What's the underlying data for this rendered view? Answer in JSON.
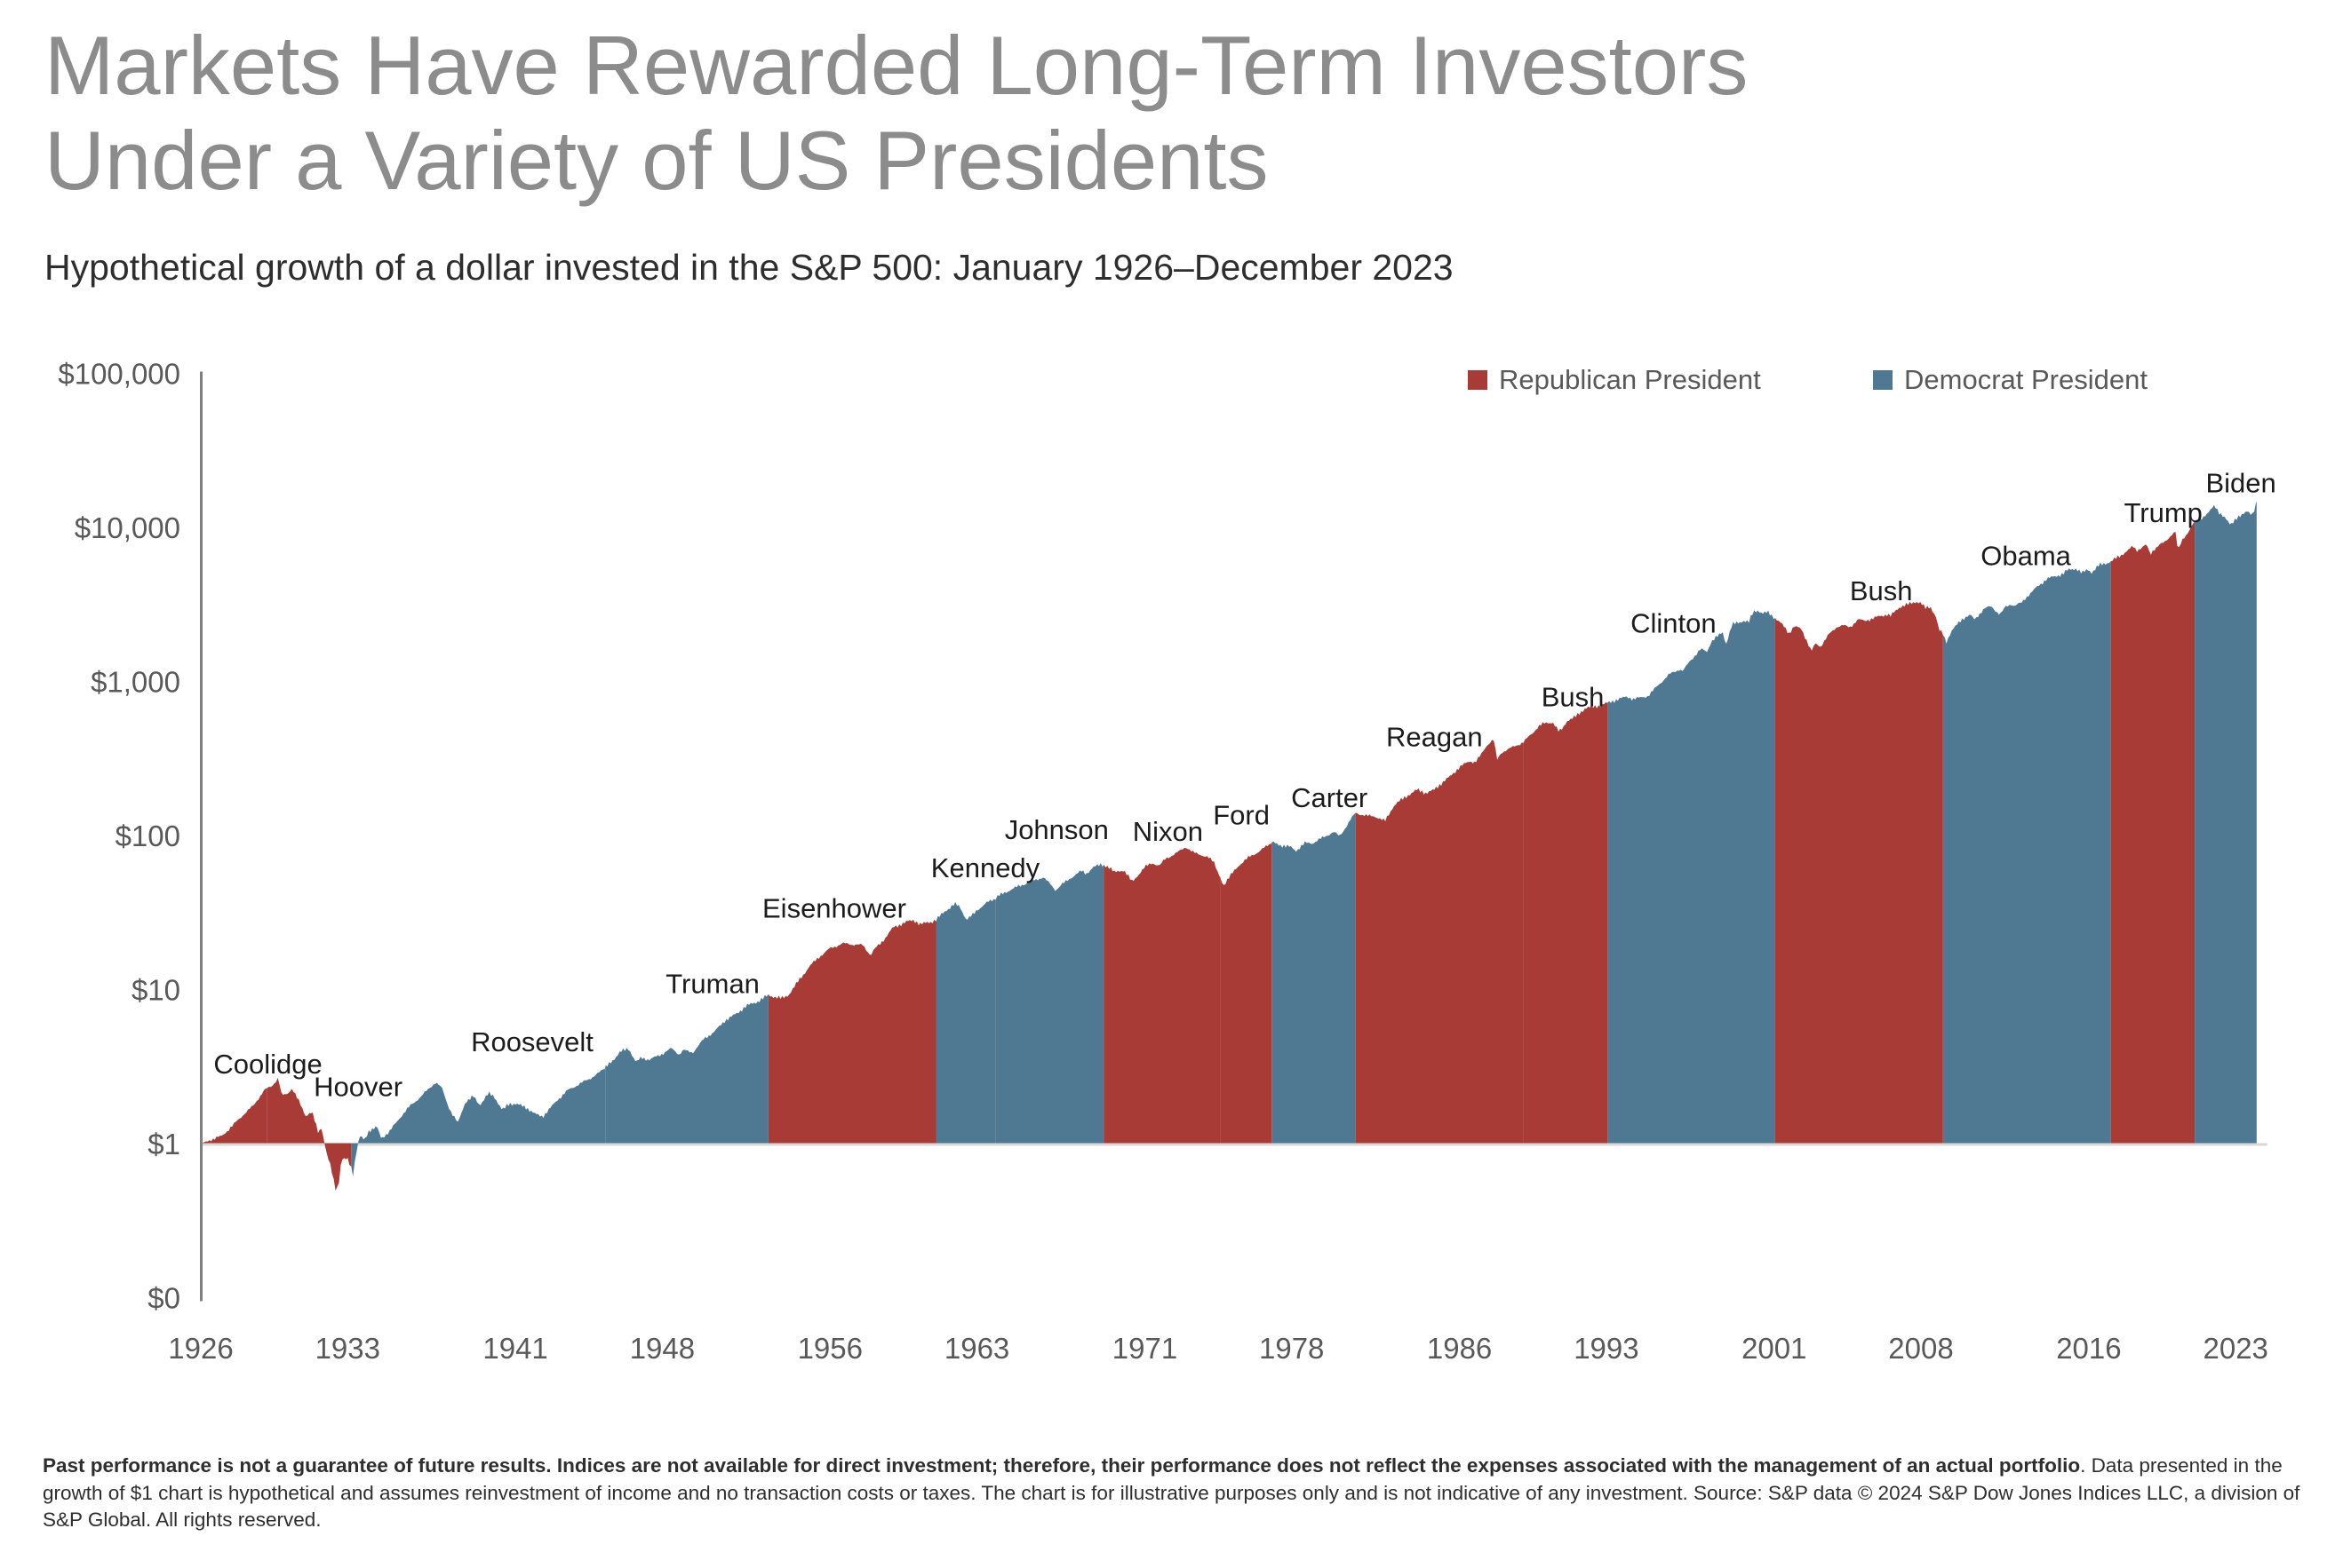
{
  "page": {
    "title_line1": "Markets Have Rewarded Long-Term Investors",
    "title_line2": "Under a Variety of US Presidents",
    "subtitle": "Hypothetical growth of a dollar invested in the S&P 500: January 1926–December 2023"
  },
  "legend": {
    "republican": {
      "label": "Republican President",
      "color": "#A93B36"
    },
    "democrat": {
      "label": "Democrat President",
      "color": "#4F7992"
    }
  },
  "footnote": {
    "bold": "Past performance is not a guarantee of future results. Indices are not available for direct investment; therefore, their performance does not reflect the expenses associated with the management of an actual portfolio",
    "regular": ". Data presented in the growth of $1 chart is hypothetical and assumes reinvestment of income and no transaction costs or taxes. The chart is for illustrative purposes only and is not indicative of any investment. Source: S&P data © 2024 S&P Dow Jones Indices LLC, a division of S&P Global. All rights reserved."
  },
  "chart_data": {
    "type": "area",
    "title": "Markets Have Rewarded Long-Term Investors Under a Variety of US Presidents",
    "subtitle": "Hypothetical growth of a dollar invested in the S&P 500: January 1926–December 2023",
    "y_scale": "log",
    "grid": "baseline-only",
    "legend_position": "top-right",
    "x_range": [
      1926,
      2024
    ],
    "y_range_decades": [
      -1,
      5
    ],
    "baseline_value": 1,
    "x_ticks": [
      1926,
      1933,
      1941,
      1948,
      1956,
      1963,
      1971,
      1978,
      1986,
      1993,
      2001,
      2008,
      2016,
      2023
    ],
    "y_ticks": [
      {
        "label": "$100,000",
        "decade": 5
      },
      {
        "label": "$10,000",
        "decade": 4
      },
      {
        "label": "$1,000",
        "decade": 3
      },
      {
        "label": "$100",
        "decade": 2
      },
      {
        "label": "$10",
        "decade": 1
      },
      {
        "label": "$1",
        "decade": 0
      },
      {
        "label": "$0",
        "decade": -1
      }
    ],
    "party_colors": {
      "R": "#A93B36",
      "D": "#4F7992"
    },
    "presidents": [
      {
        "name": "Coolidge",
        "party": "R",
        "start": 1926.0,
        "end": 1929.17,
        "label_year": 1929.2,
        "label_value": 3.3
      },
      {
        "name": "Hoover",
        "party": "R",
        "start": 1929.17,
        "end": 1933.17,
        "label_year": 1933.5,
        "label_value": 2.35
      },
      {
        "name": "Roosevelt",
        "party": "D",
        "start": 1933.17,
        "end": 1945.3,
        "label_year": 1941.8,
        "label_value": 4.6
      },
      {
        "name": "Truman",
        "party": "D",
        "start": 1945.3,
        "end": 1953.05,
        "label_year": 1950.4,
        "label_value": 11.0
      },
      {
        "name": "Eisenhower",
        "party": "R",
        "start": 1953.05,
        "end": 1961.05,
        "label_year": 1956.2,
        "label_value": 34.0
      },
      {
        "name": "Kennedy",
        "party": "D",
        "start": 1961.05,
        "end": 1963.9,
        "label_year": 1963.4,
        "label_value": 62.0
      },
      {
        "name": "Johnson",
        "party": "D",
        "start": 1963.9,
        "end": 1969.05,
        "label_year": 1966.8,
        "label_value": 110.0
      },
      {
        "name": "Nixon",
        "party": "R",
        "start": 1969.05,
        "end": 1974.6,
        "label_year": 1972.1,
        "label_value": 107.0
      },
      {
        "name": "Ford",
        "party": "R",
        "start": 1974.6,
        "end": 1977.05,
        "label_year": 1975.6,
        "label_value": 137.0
      },
      {
        "name": "Carter",
        "party": "D",
        "start": 1977.05,
        "end": 1981.05,
        "label_year": 1979.8,
        "label_value": 177.0
      },
      {
        "name": "Reagan",
        "party": "R",
        "start": 1981.05,
        "end": 1989.05,
        "label_year": 1984.8,
        "label_value": 440.0
      },
      {
        "name": "Bush",
        "party": "R",
        "start": 1989.05,
        "end": 1993.05,
        "label_year": 1991.4,
        "label_value": 800.0
      },
      {
        "name": "Clinton",
        "party": "D",
        "start": 1993.05,
        "end": 2001.05,
        "label_year": 1996.2,
        "label_value": 2400.0
      },
      {
        "name": "Bush",
        "party": "R",
        "start": 2001.05,
        "end": 2009.05,
        "label_year": 2006.1,
        "label_value": 3900.0
      },
      {
        "name": "Obama",
        "party": "D",
        "start": 2009.05,
        "end": 2017.05,
        "label_year": 2013.0,
        "label_value": 6600.0
      },
      {
        "name": "Trump",
        "party": "R",
        "start": 2017.05,
        "end": 2021.05,
        "label_year": 2019.55,
        "label_value": 12500.0
      },
      {
        "name": "Biden",
        "party": "D",
        "start": 2021.05,
        "end": 2024.0,
        "label_year": 2023.25,
        "label_value": 19500.0
      }
    ],
    "series": [
      [
        1926.0,
        1.0
      ],
      [
        1926.5,
        1.06
      ],
      [
        1927.0,
        1.12
      ],
      [
        1927.5,
        1.3
      ],
      [
        1928.0,
        1.53
      ],
      [
        1928.5,
        1.76
      ],
      [
        1929.0,
        2.2
      ],
      [
        1929.4,
        2.38
      ],
      [
        1929.7,
        2.67
      ],
      [
        1929.85,
        2.05
      ],
      [
        1930.1,
        2.1
      ],
      [
        1930.35,
        2.28
      ],
      [
        1930.7,
        1.85
      ],
      [
        1931.0,
        1.52
      ],
      [
        1931.3,
        1.6
      ],
      [
        1931.6,
        1.18
      ],
      [
        1931.75,
        1.28
      ],
      [
        1932.0,
        0.86
      ],
      [
        1932.2,
        0.7
      ],
      [
        1932.45,
        0.49
      ],
      [
        1932.6,
        0.58
      ],
      [
        1932.7,
        0.79
      ],
      [
        1933.0,
        0.79
      ],
      [
        1933.17,
        0.7
      ],
      [
        1933.25,
        0.63
      ],
      [
        1933.45,
        0.95
      ],
      [
        1933.6,
        1.12
      ],
      [
        1933.8,
        1.05
      ],
      [
        1934.0,
        1.21
      ],
      [
        1934.4,
        1.28
      ],
      [
        1934.6,
        1.08
      ],
      [
        1935.0,
        1.2
      ],
      [
        1935.5,
        1.48
      ],
      [
        1936.0,
        1.77
      ],
      [
        1936.5,
        2.02
      ],
      [
        1937.0,
        2.37
      ],
      [
        1937.2,
        2.5
      ],
      [
        1937.5,
        2.28
      ],
      [
        1937.8,
        1.75
      ],
      [
        1938.0,
        1.54
      ],
      [
        1938.25,
        1.36
      ],
      [
        1938.6,
        1.85
      ],
      [
        1939.0,
        2.02
      ],
      [
        1939.3,
        1.78
      ],
      [
        1939.72,
        2.12
      ],
      [
        1940.0,
        2.01
      ],
      [
        1940.38,
        1.64
      ],
      [
        1940.7,
        1.82
      ],
      [
        1941.0,
        1.81
      ],
      [
        1941.5,
        1.72
      ],
      [
        1941.95,
        1.55
      ],
      [
        1942.3,
        1.5
      ],
      [
        1942.7,
        1.72
      ],
      [
        1943.0,
        1.92
      ],
      [
        1943.5,
        2.22
      ],
      [
        1944.0,
        2.42
      ],
      [
        1944.5,
        2.62
      ],
      [
        1945.0,
        2.89
      ],
      [
        1945.3,
        3.12
      ],
      [
        1945.7,
        3.55
      ],
      [
        1946.0,
        3.94
      ],
      [
        1946.4,
        4.15
      ],
      [
        1946.75,
        3.35
      ],
      [
        1947.0,
        3.62
      ],
      [
        1947.4,
        3.5
      ],
      [
        1948.0,
        3.83
      ],
      [
        1948.45,
        4.15
      ],
      [
        1948.8,
        3.8
      ],
      [
        1949.0,
        4.04
      ],
      [
        1949.45,
        3.9
      ],
      [
        1950.0,
        4.8
      ],
      [
        1950.5,
        5.35
      ],
      [
        1951.0,
        6.32
      ],
      [
        1951.5,
        6.9
      ],
      [
        1952.0,
        7.83
      ],
      [
        1952.5,
        8.3
      ],
      [
        1953.05,
        9.18
      ],
      [
        1953.7,
        8.75
      ],
      [
        1954.0,
        9.18
      ],
      [
        1954.5,
        11.4
      ],
      [
        1955.0,
        14.05
      ],
      [
        1955.5,
        16.4
      ],
      [
        1956.0,
        18.48
      ],
      [
        1956.6,
        19.9
      ],
      [
        1957.0,
        19.69
      ],
      [
        1957.55,
        19.4
      ],
      [
        1957.95,
        16.6
      ],
      [
        1958.0,
        17.57
      ],
      [
        1958.5,
        20.6
      ],
      [
        1959.0,
        25.2
      ],
      [
        1959.6,
        27.4
      ],
      [
        1960.0,
        28.2
      ],
      [
        1960.3,
        26.5
      ],
      [
        1960.8,
        27.5
      ],
      [
        1961.05,
        28.34
      ],
      [
        1961.5,
        32.5
      ],
      [
        1961.95,
        35.96
      ],
      [
        1962.2,
        34.2
      ],
      [
        1962.5,
        28.3
      ],
      [
        1962.8,
        30.5
      ],
      [
        1963.0,
        32.83
      ],
      [
        1963.5,
        36.8
      ],
      [
        1963.9,
        39.2
      ],
      [
        1964.0,
        40.3
      ],
      [
        1964.5,
        43.8
      ],
      [
        1965.0,
        46.92
      ],
      [
        1965.5,
        49.8
      ],
      [
        1966.0,
        52.76
      ],
      [
        1966.15,
        53.6
      ],
      [
        1966.55,
        47.5
      ],
      [
        1966.75,
        44.2
      ],
      [
        1967.0,
        47.45
      ],
      [
        1967.5,
        53.5
      ],
      [
        1968.0,
        58.85
      ],
      [
        1968.2,
        56.5
      ],
      [
        1968.55,
        62.0
      ],
      [
        1968.92,
        65.37
      ],
      [
        1969.3,
        62.5
      ],
      [
        1969.55,
        57.5
      ],
      [
        1970.0,
        59.79
      ],
      [
        1970.4,
        49.8
      ],
      [
        1970.75,
        57.0
      ],
      [
        1971.0,
        62.19
      ],
      [
        1971.35,
        66.5
      ],
      [
        1971.7,
        63.5
      ],
      [
        1972.0,
        71.09
      ],
      [
        1972.5,
        76.5
      ],
      [
        1972.95,
        84.59
      ],
      [
        1973.3,
        77.5
      ],
      [
        1973.7,
        75.0
      ],
      [
        1974.0,
        72.16
      ],
      [
        1974.3,
        67.0
      ],
      [
        1974.75,
        47.5
      ],
      [
        1975.0,
        53.06
      ],
      [
        1975.5,
        64.5
      ],
      [
        1976.0,
        72.8
      ],
      [
        1976.5,
        79.5
      ],
      [
        1977.05,
        90.19
      ],
      [
        1977.5,
        86.5
      ],
      [
        1978.0,
        83.72
      ],
      [
        1978.2,
        79.5
      ],
      [
        1978.65,
        89.5
      ],
      [
        1979.0,
        89.24
      ],
      [
        1979.5,
        97.0
      ],
      [
        1980.0,
        105.75
      ],
      [
        1980.28,
        98.5
      ],
      [
        1980.9,
        132.0
      ],
      [
        1981.05,
        140.08
      ],
      [
        1981.6,
        134.0
      ],
      [
        1982.0,
        133.19
      ],
      [
        1982.45,
        123.5
      ],
      [
        1982.85,
        155.0
      ],
      [
        1983.0,
        161.86
      ],
      [
        1983.5,
        181.0
      ],
      [
        1984.0,
        198.32
      ],
      [
        1984.4,
        188.5
      ],
      [
        1984.75,
        196.0
      ],
      [
        1985.0,
        210.75
      ],
      [
        1985.5,
        238.0
      ],
      [
        1986.0,
        277.59
      ],
      [
        1986.5,
        305.0
      ],
      [
        1986.75,
        298.0
      ],
      [
        1987.0,
        329.39
      ],
      [
        1987.3,
        385.0
      ],
      [
        1987.62,
        422.0
      ],
      [
        1987.8,
        310.0
      ],
      [
        1988.0,
        346.55
      ],
      [
        1988.5,
        372.0
      ],
      [
        1989.05,
        403.92
      ],
      [
        1989.5,
        465.0
      ],
      [
        1989.75,
        510.0
      ],
      [
        1990.0,
        531.7
      ],
      [
        1990.45,
        545.0
      ],
      [
        1990.75,
        468.0
      ],
      [
        1991.0,
        515.16
      ],
      [
        1991.1,
        555.0
      ],
      [
        1991.5,
        585.0
      ],
      [
        1992.0,
        672.07
      ],
      [
        1992.5,
        688.0
      ],
      [
        1993.05,
        723.25
      ],
      [
        1993.5,
        762.0
      ],
      [
        1994.0,
        796.06
      ],
      [
        1994.3,
        768.0
      ],
      [
        1994.7,
        788.0
      ],
      [
        1995.0,
        806.59
      ],
      [
        1995.5,
        955.0
      ],
      [
        1996.0,
        1109.6
      ],
      [
        1996.5,
        1205.0
      ],
      [
        1996.65,
        1165.0
      ],
      [
        1997.0,
        1364.3
      ],
      [
        1997.5,
        1620.0
      ],
      [
        1997.8,
        1560.0
      ],
      [
        1998.0,
        1819.5
      ],
      [
        1998.55,
        2085.0
      ],
      [
        1998.7,
        1740.0
      ],
      [
        1999.0,
        2339.2
      ],
      [
        1999.55,
        2480.0
      ],
      [
        1999.8,
        2420.0
      ],
      [
        2000.0,
        2831.2
      ],
      [
        2000.2,
        2905.0
      ],
      [
        2000.45,
        2750.0
      ],
      [
        2000.7,
        2820.0
      ],
      [
        2001.05,
        2573.5
      ],
      [
        2001.45,
        2290.0
      ],
      [
        2001.72,
        2055.0
      ],
      [
        2001.9,
        2240.0
      ],
      [
        2002.0,
        2267.7
      ],
      [
        2002.3,
        2190.0
      ],
      [
        2002.55,
        1850.0
      ],
      [
        2002.78,
        1555.0
      ],
      [
        2002.9,
        1700.0
      ],
      [
        2003.0,
        1766.5
      ],
      [
        2003.2,
        1680.0
      ],
      [
        2003.6,
        2010.0
      ],
      [
        2004.0,
        2273.1
      ],
      [
        2004.3,
        2310.0
      ],
      [
        2004.6,
        2245.0
      ],
      [
        2005.0,
        2520.6
      ],
      [
        2005.3,
        2475.0
      ],
      [
        2005.7,
        2560.0
      ],
      [
        2006.0,
        2644.1
      ],
      [
        2006.4,
        2730.0
      ],
      [
        2006.55,
        2660.0
      ],
      [
        2007.0,
        3062.1
      ],
      [
        2007.45,
        3180.0
      ],
      [
        2007.78,
        3305.0
      ],
      [
        2008.0,
        3230.3
      ],
      [
        2008.2,
        2980.0
      ],
      [
        2008.45,
        3060.0
      ],
      [
        2008.72,
        2620.0
      ],
      [
        2008.85,
        2150.0
      ],
      [
        2009.05,
        2035.1
      ],
      [
        2009.2,
        1795.0
      ],
      [
        2009.45,
        2120.0
      ],
      [
        2009.8,
        2400.0
      ],
      [
        2010.0,
        2573.7
      ],
      [
        2010.35,
        2700.0
      ],
      [
        2010.55,
        2520.0
      ],
      [
        2011.0,
        2961.4
      ],
      [
        2011.35,
        3075.0
      ],
      [
        2011.75,
        2720.0
      ],
      [
        2011.9,
        2850.0
      ],
      [
        2012.0,
        3023.8
      ],
      [
        2012.3,
        3180.0
      ],
      [
        2012.45,
        3095.0
      ],
      [
        2012.8,
        3240.0
      ],
      [
        2013.0,
        3507.7
      ],
      [
        2013.5,
        4060.0
      ],
      [
        2014.0,
        4643.3
      ],
      [
        2014.35,
        4780.0
      ],
      [
        2014.75,
        4990.0
      ],
      [
        2015.0,
        5278.9
      ],
      [
        2015.4,
        5420.0
      ],
      [
        2015.68,
        5020.0
      ],
      [
        2015.85,
        5240.0
      ],
      [
        2016.0,
        5352.1
      ],
      [
        2016.12,
        5080.0
      ],
      [
        2016.5,
        5690.0
      ],
      [
        2017.05,
        5992.1
      ],
      [
        2017.5,
        6560.0
      ],
      [
        2018.0,
        7300.4
      ],
      [
        2018.1,
        7560.0
      ],
      [
        2018.28,
        7080.0
      ],
      [
        2018.75,
        7720.0
      ],
      [
        2018.95,
        6580.0
      ],
      [
        2019.0,
        6980.2
      ],
      [
        2019.35,
        7690.0
      ],
      [
        2019.6,
        7950.0
      ],
      [
        2020.0,
        9178.1
      ],
      [
        2020.15,
        9350.0
      ],
      [
        2020.24,
        6930.0
      ],
      [
        2020.45,
        8300.0
      ],
      [
        2020.7,
        9200.0
      ],
      [
        2021.05,
        10866.4
      ],
      [
        2021.4,
        11600.0
      ],
      [
        2021.7,
        12350.0
      ],
      [
        2022.0,
        13983.0
      ],
      [
        2022.2,
        12600.0
      ],
      [
        2022.5,
        11400.0
      ],
      [
        2022.75,
        10420.0
      ],
      [
        2023.0,
        11450.5
      ],
      [
        2023.3,
        11900.0
      ],
      [
        2023.55,
        12850.0
      ],
      [
        2023.82,
        12150.0
      ],
      [
        2024.0,
        14461.0
      ]
    ]
  },
  "colors": {
    "title": "#8C8C8C",
    "subtitle": "#2E2E2E",
    "axis_text": "#595959",
    "president_label": "#1C1C1C",
    "axis_line": "#7F7F7F",
    "baseline_line": "#D9D9D9",
    "background": "#FFFFFF"
  }
}
